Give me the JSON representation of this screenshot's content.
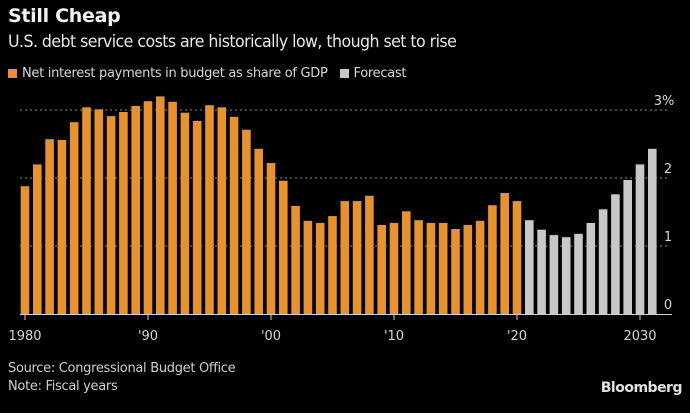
{
  "chart_data": {
    "type": "bar",
    "title": "Still Cheap",
    "subtitle": "U.S. debt service costs are historically low, though set to rise",
    "xlabel": "",
    "ylabel": "",
    "ylim": [
      0,
      3.3
    ],
    "yticks": [
      {
        "value": 0,
        "label": "0"
      },
      {
        "value": 1,
        "label": "1"
      },
      {
        "value": 2,
        "label": "2"
      },
      {
        "value": 3,
        "label": "3%"
      }
    ],
    "xticks": [
      {
        "year": 1980,
        "label": "1980"
      },
      {
        "year": 1990,
        "label": "'90"
      },
      {
        "year": 2000,
        "label": "'00"
      },
      {
        "year": 2010,
        "label": "'10"
      },
      {
        "year": 2020,
        "label": "'20"
      },
      {
        "year": 2030,
        "label": "2030"
      }
    ],
    "grid": true,
    "legend_position": "top-left",
    "series": [
      {
        "name": "Net interest payments in budget as share of GDP",
        "color": "#e8922e",
        "x": [
          1980,
          1981,
          1982,
          1983,
          1984,
          1985,
          1986,
          1987,
          1988,
          1989,
          1990,
          1991,
          1992,
          1993,
          1994,
          1995,
          1996,
          1997,
          1998,
          1999,
          2000,
          2001,
          2002,
          2003,
          2004,
          2005,
          2006,
          2007,
          2008,
          2009,
          2010,
          2011,
          2012,
          2013,
          2014,
          2015,
          2016,
          2017,
          2018,
          2019,
          2020
        ],
        "values": [
          1.88,
          2.2,
          2.57,
          2.56,
          2.82,
          3.04,
          3.01,
          2.91,
          2.97,
          3.06,
          3.13,
          3.2,
          3.12,
          2.96,
          2.84,
          3.07,
          3.04,
          2.9,
          2.71,
          2.43,
          2.22,
          1.96,
          1.59,
          1.37,
          1.34,
          1.44,
          1.66,
          1.66,
          1.74,
          1.31,
          1.34,
          1.51,
          1.38,
          1.34,
          1.34,
          1.25,
          1.31,
          1.37,
          1.6,
          1.78,
          1.66
        ]
      },
      {
        "name": "Forecast",
        "color": "#c8c8c8",
        "x": [
          2021,
          2022,
          2023,
          2024,
          2025,
          2026,
          2027,
          2028,
          2029,
          2030,
          2031
        ],
        "values": [
          1.38,
          1.24,
          1.16,
          1.13,
          1.18,
          1.34,
          1.54,
          1.76,
          1.97,
          2.2,
          2.43
        ]
      }
    ],
    "source": "Source: Congressional Budget Office",
    "note": "Note: Fiscal years",
    "brand": "Bloomberg"
  }
}
